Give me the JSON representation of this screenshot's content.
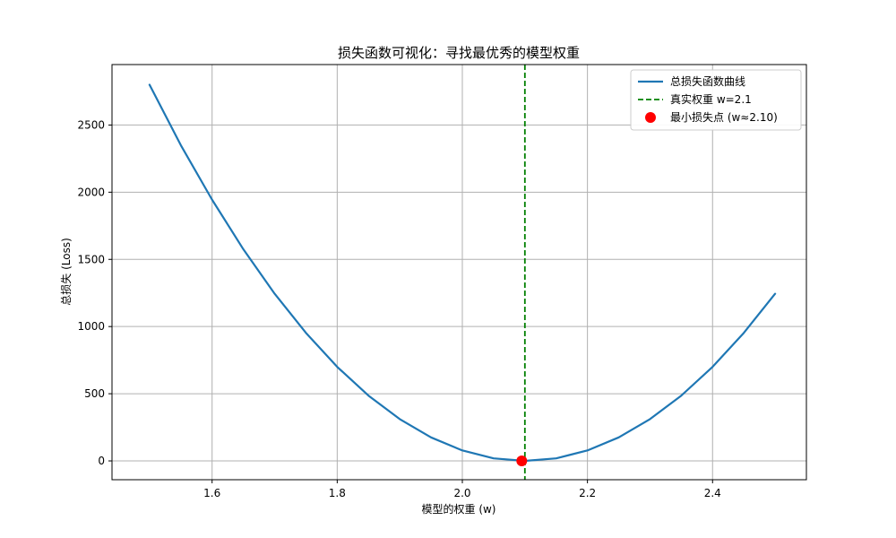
{
  "chart_data": {
    "type": "line",
    "title": "损失函数可视化：寻找最优秀的模型权重",
    "xlabel": "模型的权重 (w)",
    "ylabel": "总损失 (Loss)",
    "xlim": [
      1.44,
      2.55
    ],
    "ylim": [
      -140,
      2950
    ],
    "xticks": [
      1.6,
      1.8,
      2.0,
      2.2,
      2.4
    ],
    "xtick_labels": [
      "1.6",
      "1.8",
      "2.0",
      "2.2",
      "2.4"
    ],
    "yticks": [
      0,
      500,
      1000,
      1500,
      2000,
      2500
    ],
    "ytick_labels": [
      "0",
      "500",
      "1000",
      "1500",
      "2000",
      "2500"
    ],
    "grid": true,
    "legend_position": "top-right",
    "colors": {
      "curve": "#1f77b4",
      "true_line": "#008000",
      "min_point": "#ff0000",
      "grid": "#b0b0b0"
    },
    "series": [
      {
        "name": "总损失函数曲线",
        "kind": "line",
        "x": [
          1.5,
          1.55,
          1.6,
          1.65,
          1.7,
          1.75,
          1.8,
          1.85,
          1.9,
          1.95,
          2.0,
          2.05,
          2.1,
          2.15,
          2.2,
          2.25,
          2.3,
          2.35,
          2.4,
          2.45,
          2.5
        ],
        "y": [
          2800,
          2350,
          1944,
          1575,
          1244,
          953,
          700,
          486,
          311,
          175,
          78,
          19,
          0,
          19,
          78,
          175,
          311,
          486,
          700,
          953,
          1244
        ]
      }
    ],
    "vline": {
      "name": "真实权重 w=2.1",
      "x": 2.1
    },
    "min_point": {
      "name": "最小损失点 (w≈2.10)",
      "x": 2.095,
      "y": 0
    }
  }
}
